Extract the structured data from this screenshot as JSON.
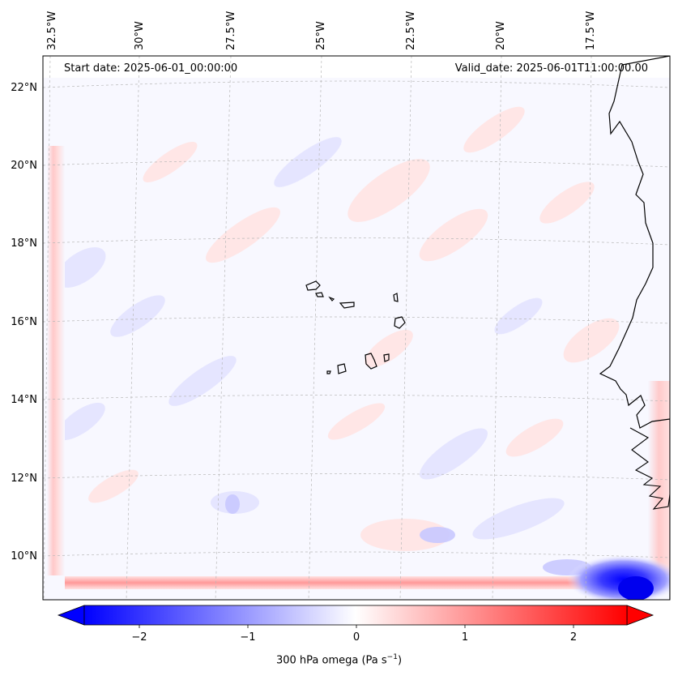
{
  "header": {
    "start_date": "Start date: 2025-06-01_00:00:00",
    "valid_date": "Valid_date: 2025-06-01T11:00:00.00"
  },
  "map": {
    "lon_labels": [
      "32.5°W",
      "30°W",
      "27.5°W",
      "25°W",
      "22.5°W",
      "20°W",
      "17.5°W"
    ],
    "lat_labels": [
      "22°N",
      "20°N",
      "18°N",
      "16°N",
      "14°N",
      "12°N",
      "10°N"
    ],
    "field": "300 hPa omega"
  },
  "colorbar": {
    "ticks": [
      "−2",
      "−1",
      "0",
      "1",
      "2"
    ],
    "label_main": "300 hPa omega (Pa s",
    "label_exp": "−1",
    "label_close": ")",
    "min": -2.7,
    "max": 2.7,
    "negative_color": "#0000ff",
    "positive_color": "#ff0000",
    "neutral_color": "#ffffff"
  }
}
